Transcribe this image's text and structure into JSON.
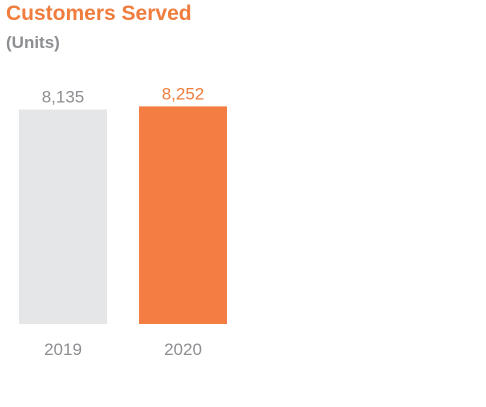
{
  "chart_data": {
    "type": "bar",
    "title": "Customers Served",
    "subtitle": "(Units)",
    "categories": [
      "2019",
      "2020"
    ],
    "values": [
      8135,
      8252
    ],
    "value_labels": [
      "8,135",
      "8,252"
    ],
    "bar_colors": [
      "#e5e6e8",
      "#f37d42"
    ],
    "value_label_colors": [
      "#8c8e91",
      "#f07c3d"
    ],
    "tick_label_color": "#8c8e91",
    "xlabel": "",
    "ylabel": "",
    "grid": false,
    "legend": "none"
  }
}
